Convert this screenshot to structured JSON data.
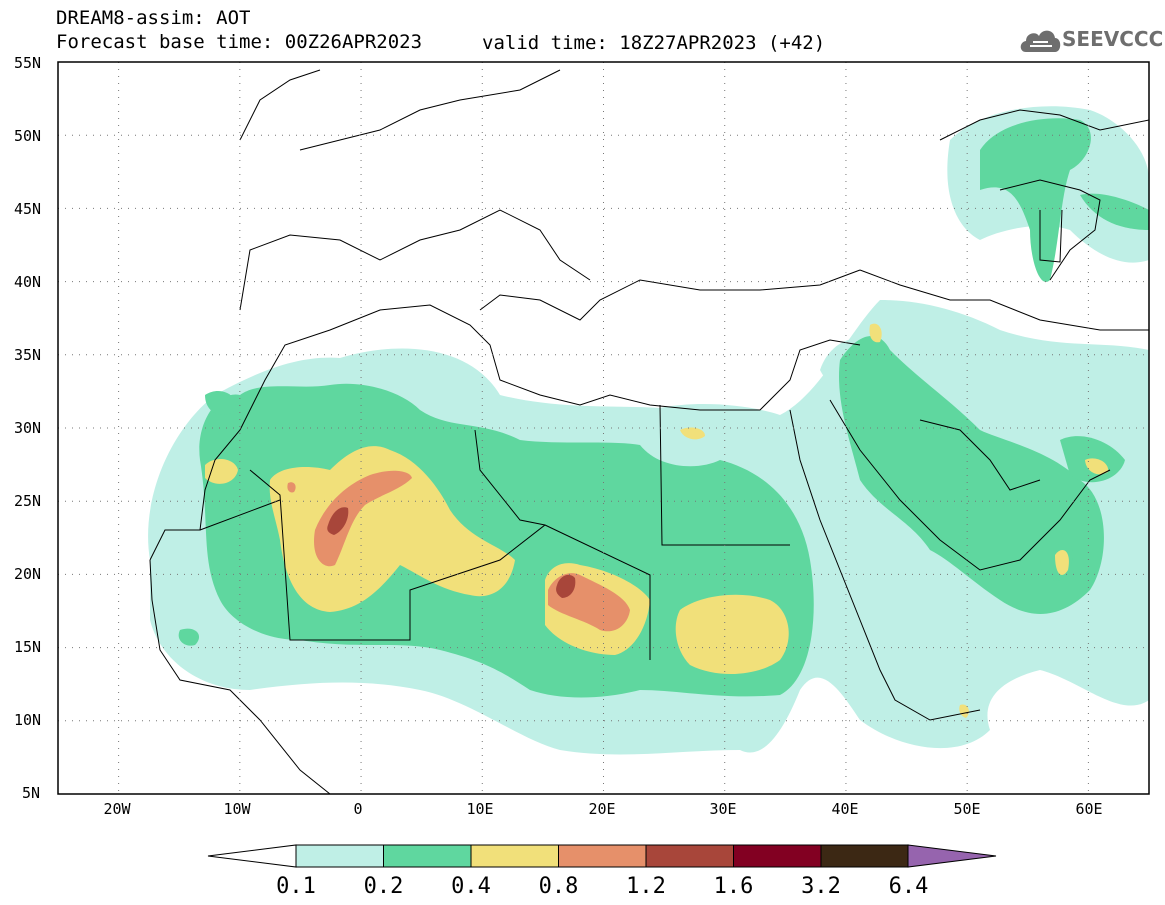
{
  "header": {
    "model_line": "DREAM8-assim: AOT",
    "base_line": "Forecast base time: 00Z26APR2023",
    "valid_line": "valid time: 18Z27APR2023 (+42)",
    "logo_text": "SEEVCCC"
  },
  "map": {
    "lon_range": [
      -25,
      65
    ],
    "lat_range": [
      5,
      55
    ],
    "lat_ticks": [
      "55N",
      "50N",
      "45N",
      "40N",
      "35N",
      "30N",
      "25N",
      "20N",
      "15N",
      "10N",
      "5N"
    ],
    "lon_ticks": [
      "20W",
      "10W",
      "0",
      "10E",
      "20E",
      "30E",
      "40E",
      "50E",
      "60E"
    ]
  },
  "colorbar": {
    "levels": [
      "0.1",
      "0.2",
      "0.4",
      "0.8",
      "1.2",
      "1.6",
      "3.2",
      "6.4"
    ],
    "colors": [
      "#ffffff",
      "#bfefe6",
      "#5fd79f",
      "#f1e07a",
      "#e6906a",
      "#a8463a",
      "#820022",
      "#3c2814",
      "#9664ae"
    ]
  }
}
